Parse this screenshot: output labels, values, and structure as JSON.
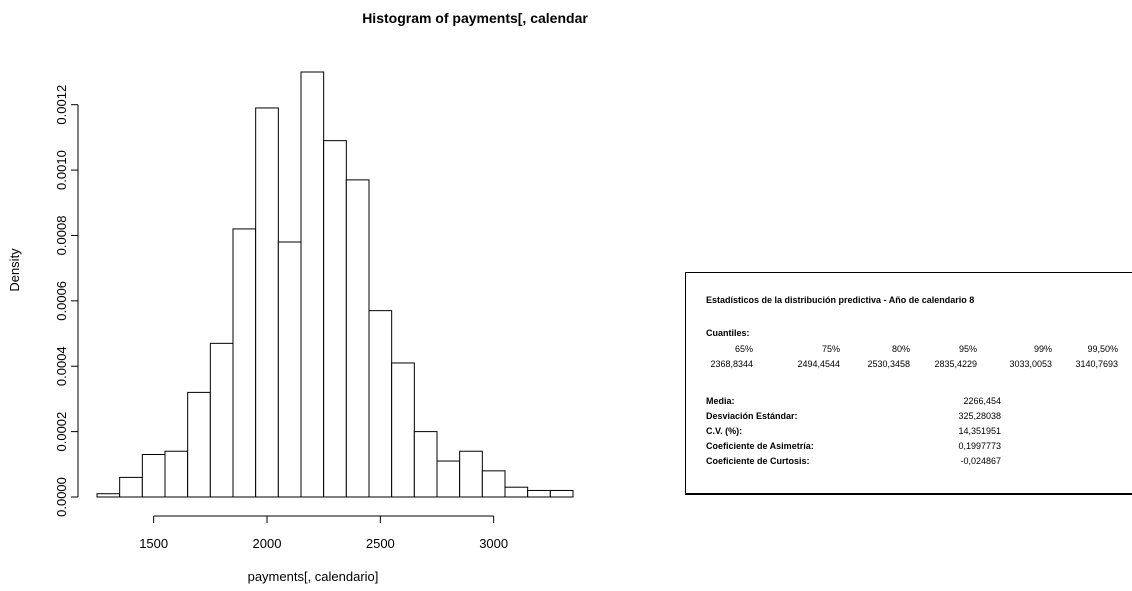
{
  "chart_data": {
    "type": "bar",
    "title": "Histogram of payments[, calendar",
    "xlabel": "payments[, calendario]",
    "ylabel": "Density",
    "bin_width": 100,
    "bins": [
      {
        "start": 1250,
        "end": 1350,
        "density": 1e-05
      },
      {
        "start": 1350,
        "end": 1450,
        "density": 6e-05
      },
      {
        "start": 1450,
        "end": 1550,
        "density": 0.00013
      },
      {
        "start": 1550,
        "end": 1650,
        "density": 0.00014
      },
      {
        "start": 1650,
        "end": 1750,
        "density": 0.00032
      },
      {
        "start": 1750,
        "end": 1850,
        "density": 0.00047
      },
      {
        "start": 1850,
        "end": 1950,
        "density": 0.00082
      },
      {
        "start": 1950,
        "end": 2050,
        "density": 0.00119
      },
      {
        "start": 2050,
        "end": 2150,
        "density": 0.00078
      },
      {
        "start": 2150,
        "end": 2250,
        "density": 0.0013
      },
      {
        "start": 2250,
        "end": 2350,
        "density": 0.00109
      },
      {
        "start": 2350,
        "end": 2450,
        "density": 0.00097
      },
      {
        "start": 2450,
        "end": 2550,
        "density": 0.00057
      },
      {
        "start": 2550,
        "end": 2650,
        "density": 0.00041
      },
      {
        "start": 2650,
        "end": 2750,
        "density": 0.0002
      },
      {
        "start": 2750,
        "end": 2850,
        "density": 0.00011
      },
      {
        "start": 2850,
        "end": 2950,
        "density": 0.00014
      },
      {
        "start": 2950,
        "end": 3050,
        "density": 8e-05
      },
      {
        "start": 3050,
        "end": 3150,
        "density": 3e-05
      },
      {
        "start": 3150,
        "end": 3250,
        "density": 2e-05
      },
      {
        "start": 3250,
        "end": 3350,
        "density": 2e-05
      }
    ],
    "x_ticks": [
      1500,
      2000,
      2500,
      3000
    ],
    "x_tick_labels": [
      "1500",
      "2000",
      "2500",
      "3000"
    ],
    "y_ticks": [
      0,
      0.0002,
      0.0004,
      0.0006,
      0.0008,
      0.001,
      0.0012
    ],
    "y_tick_labels": [
      "0.0000",
      "0.0002",
      "0.0004",
      "0.0006",
      "0.0008",
      "0.0010",
      "0.0012"
    ],
    "xlim": [
      1250,
      3350
    ],
    "ylim": [
      0,
      0.0013
    ]
  },
  "stats_panel": {
    "title": "Estadísticos de la distribución predictiva - Año de calendario 8",
    "quantiles_header": "Cuantiles:",
    "quantile_levels": [
      "65%",
      "75%",
      "80%",
      "95%",
      "99%",
      "99,50%"
    ],
    "quantile_values": [
      "2368,8344",
      "2494,4544",
      "2530,3458",
      "2835,4229",
      "3033,0053",
      "3140,7693"
    ],
    "stats": [
      {
        "label": "Media:",
        "value": "2266,454"
      },
      {
        "label": "Desviación Estándar:",
        "value": "325,28038"
      },
      {
        "label": "C.V. (%):",
        "value": "14,351951"
      },
      {
        "label": "Coeficiente de Asimetría:",
        "value": "0,1997773"
      },
      {
        "label": "Coeficiente de Curtosis:",
        "value": "-0,024867"
      }
    ]
  }
}
